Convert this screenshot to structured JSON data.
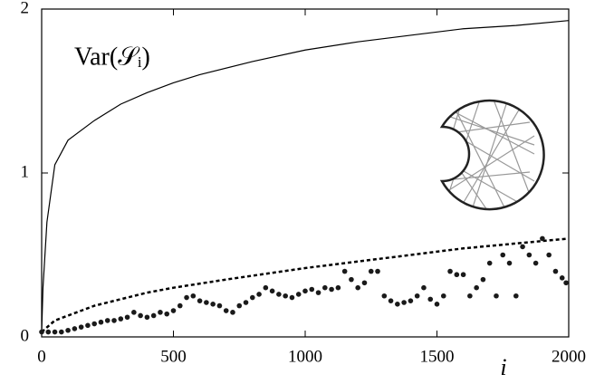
{
  "chart_data": {
    "type": "line",
    "annotation": "Var(𝒮ᵢ)",
    "x_label": "i",
    "xlim": [
      0,
      2000
    ],
    "xticks": [
      0,
      500,
      1000,
      1500,
      2000
    ],
    "ylim": [
      0,
      2
    ],
    "yticks": [
      0,
      1,
      2
    ],
    "series": [
      {
        "style": "solid",
        "color": "#000000",
        "x": [
          0,
          5,
          20,
          50,
          100,
          200,
          300,
          400,
          500,
          600,
          800,
          1000,
          1200,
          1400,
          1600,
          1800,
          2000
        ],
        "values": [
          0.03,
          0.3,
          0.7,
          1.05,
          1.2,
          1.32,
          1.42,
          1.49,
          1.55,
          1.6,
          1.68,
          1.75,
          1.8,
          1.84,
          1.88,
          1.9,
          1.93
        ]
      },
      {
        "style": "dashed",
        "color": "#000000",
        "x": [
          0,
          50,
          100,
          200,
          300,
          400,
          500,
          700,
          1000,
          1300,
          1600,
          2000
        ],
        "values": [
          0.03,
          0.1,
          0.13,
          0.19,
          0.23,
          0.27,
          0.3,
          0.35,
          0.42,
          0.48,
          0.54,
          0.6
        ]
      },
      {
        "style": "points",
        "color": "#1a1a1a",
        "x": [
          0,
          25,
          50,
          75,
          100,
          125,
          150,
          175,
          200,
          225,
          250,
          275,
          300,
          325,
          350,
          375,
          400,
          425,
          450,
          475,
          500,
          525,
          550,
          575,
          600,
          625,
          650,
          675,
          700,
          725,
          750,
          775,
          800,
          825,
          850,
          875,
          900,
          925,
          950,
          975,
          1000,
          1025,
          1050,
          1075,
          1100,
          1125,
          1150,
          1175,
          1200,
          1225,
          1250,
          1275,
          1300,
          1325,
          1350,
          1375,
          1400,
          1425,
          1450,
          1475,
          1500,
          1525,
          1550,
          1575,
          1600,
          1625,
          1650,
          1675,
          1700,
          1725,
          1750,
          1775,
          1800,
          1825,
          1850,
          1875,
          1900,
          1925,
          1950,
          1975,
          1990
        ],
        "values": [
          0.03,
          0.03,
          0.03,
          0.03,
          0.04,
          0.05,
          0.06,
          0.07,
          0.08,
          0.09,
          0.1,
          0.1,
          0.11,
          0.12,
          0.15,
          0.13,
          0.12,
          0.13,
          0.15,
          0.14,
          0.16,
          0.19,
          0.24,
          0.25,
          0.22,
          0.21,
          0.2,
          0.19,
          0.16,
          0.15,
          0.19,
          0.21,
          0.24,
          0.26,
          0.3,
          0.28,
          0.26,
          0.25,
          0.24,
          0.26,
          0.28,
          0.29,
          0.27,
          0.3,
          0.29,
          0.3,
          0.4,
          0.35,
          0.3,
          0.33,
          0.4,
          0.4,
          0.25,
          0.22,
          0.2,
          0.21,
          0.22,
          0.25,
          0.3,
          0.23,
          0.2,
          0.25,
          0.4,
          0.38,
          0.38,
          0.25,
          0.3,
          0.35,
          0.45,
          0.25,
          0.5,
          0.45,
          0.25,
          0.55,
          0.5,
          0.45,
          0.6,
          0.5,
          0.4,
          0.36,
          0.33
        ]
      }
    ]
  }
}
